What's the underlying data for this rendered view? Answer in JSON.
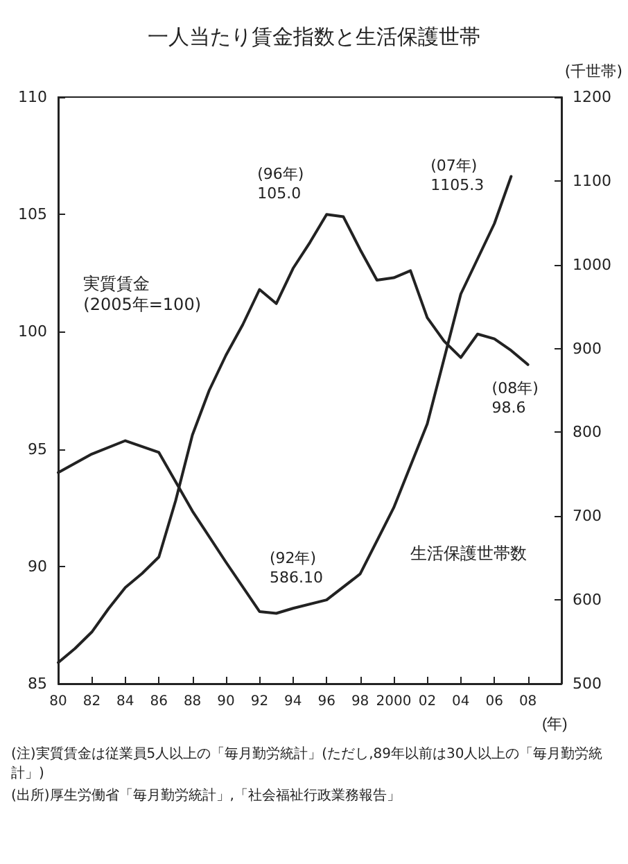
{
  "chart_data": {
    "type": "line",
    "title": "一人当たり賃金指数と生活保護世帯",
    "xlabel": "(年)",
    "y2label": "(千世帯)",
    "x": [
      1980,
      1981,
      1982,
      1983,
      1984,
      1985,
      1986,
      1987,
      1988,
      1989,
      1990,
      1991,
      1992,
      1993,
      1994,
      1995,
      1996,
      1997,
      1998,
      1999,
      2000,
      2001,
      2002,
      2003,
      2004,
      2005,
      2006,
      2007,
      2008
    ],
    "series": [
      {
        "name": "実質賃金\n(2005年=100)",
        "color": "#222222",
        "values": [
          85.9,
          86.5,
          87.2,
          88.2,
          89.1,
          89.7,
          90.4,
          92.8,
          95.6,
          97.5,
          99.0,
          100.3,
          101.8,
          101.2,
          102.7,
          103.8,
          105.0,
          104.9,
          103.5,
          102.2,
          102.3,
          102.6,
          100.6,
          99.6,
          98.9,
          99.9,
          99.7,
          99.2,
          98.6
        ]
      },
      {
        "name": "生活保護世帯数",
        "color": "#222222",
        "axis": "y2",
        "x": [
          1980,
          1982,
          1984,
          1986,
          1988,
          1990,
          1992,
          1993,
          1994,
          1996,
          1998,
          2000,
          2002,
          2004,
          2006,
          2007
        ],
        "values": [
          752,
          774,
          790,
          776,
          706,
          645,
          586.1,
          584,
          590,
          600,
          631,
          710,
          810,
          965,
          1049,
          1105.3
        ]
      }
    ],
    "xlim": [
      1980,
      2010
    ],
    "xticks": [
      {
        "value": 1980,
        "label": "80"
      },
      {
        "value": 1982,
        "label": "82"
      },
      {
        "value": 1984,
        "label": "84"
      },
      {
        "value": 1986,
        "label": "86"
      },
      {
        "value": 1988,
        "label": "88"
      },
      {
        "value": 1990,
        "label": "90"
      },
      {
        "value": 1992,
        "label": "92"
      },
      {
        "value": 1994,
        "label": "94"
      },
      {
        "value": 1996,
        "label": "96"
      },
      {
        "value": 1998,
        "label": "98"
      },
      {
        "value": 2000,
        "label": "2000"
      },
      {
        "value": 2002,
        "label": "02"
      },
      {
        "value": 2004,
        "label": "04"
      },
      {
        "value": 2006,
        "label": "06"
      },
      {
        "value": 2008,
        "label": "08"
      }
    ],
    "ylim": [
      85,
      110
    ],
    "yticks": [
      85,
      90,
      95,
      100,
      105,
      110
    ],
    "y2lim": [
      500,
      1200
    ],
    "y2ticks": [
      500,
      600,
      700,
      800,
      900,
      1000,
      1100,
      1200
    ],
    "annotations": [
      "(92年)\n586.10",
      {
        "text": "(96年)\n105.0",
        "x": 1996,
        "y": 105.0
      },
      "(07年)\n1105.3",
      {
        "text": "(08年)\n98.6",
        "x": 2008,
        "y": 98.6
      },
      "(注)実質賃金は従業員5人以上の「毎月勤労統計」(ただし,89年以前は30人以上の「毎月勤労統計」)",
      "(出所)厚生労働省「毎月勤労統計」,「社会福祉行政業務報告」"
    ],
    "grid": false,
    "legend": false,
    "marker": "none",
    "line_style": "solid"
  }
}
